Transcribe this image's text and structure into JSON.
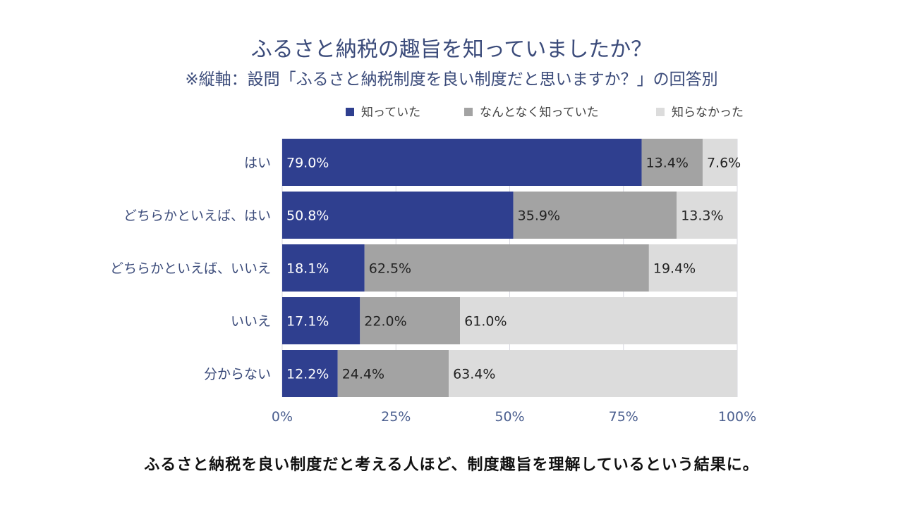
{
  "chart_data": {
    "type": "bar",
    "orientation": "horizontal",
    "stacked": true,
    "title": "ふるさと納税の趣旨を知っていましたか？",
    "subtitle": "※縦軸：設問「ふるさと納税制度を良い制度だと思いますか？」の回答別",
    "categories": [
      "はい",
      "どちらかといえば、はい",
      "どちらかといえば、いいえ",
      "いいえ",
      "分からない"
    ],
    "series": [
      {
        "name": "知っていた",
        "color": "#2f3f8f",
        "label_color": "#ffffff",
        "values": [
          79.0,
          50.8,
          18.1,
          17.1,
          12.2
        ],
        "labels": [
          "79.0%",
          "50.8%",
          "18.1%",
          "17.1%",
          "12.2%"
        ]
      },
      {
        "name": "なんとなく知っていた",
        "color": "#a3a3a3",
        "label_color": "#222222",
        "values": [
          13.4,
          35.9,
          62.5,
          22.0,
          24.4
        ],
        "labels": [
          "13.4%",
          "35.9%",
          "62.5%",
          "22.0%",
          "24.4%"
        ]
      },
      {
        "name": "知らなかった",
        "color": "#dcdcdc",
        "label_color": "#222222",
        "values": [
          7.6,
          13.3,
          19.4,
          61.0,
          63.4
        ],
        "labels": [
          "7.6%",
          "13.3%",
          "19.4%",
          "61.0%",
          "63.4%"
        ]
      }
    ],
    "xlim": [
      0,
      100
    ],
    "xticks": [
      0,
      25,
      50,
      75,
      100
    ],
    "xtick_labels": [
      "0%",
      "25%",
      "50%",
      "75%",
      "100%"
    ],
    "grid": true,
    "legend_position": "top-right",
    "title_color": "#3b4b7a",
    "category_label_color": "#3b4b7a",
    "tick_label_color": "#4b5f8f",
    "legend_text_color": "#444444",
    "grid_color": "#d8d8e0"
  },
  "caption": "ふるさと納税を良い制度だと考える人ほど、制度趣旨を理解しているという結果に。"
}
